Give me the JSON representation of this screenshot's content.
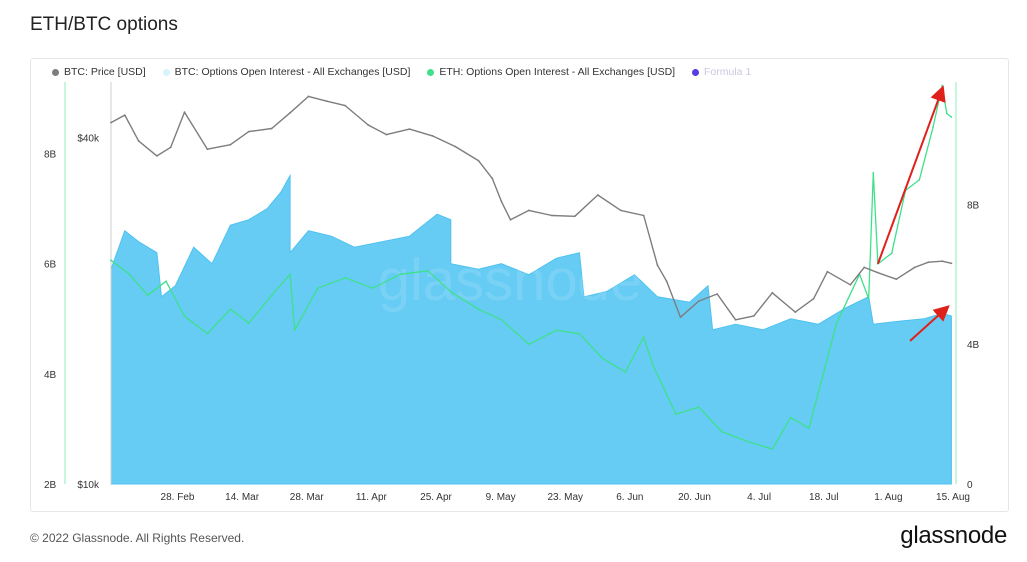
{
  "page": {
    "title": "ETH/BTC options",
    "copyright": "© 2022 Glassnode. All Rights Reserved.",
    "brand": "glassnode",
    "watermark": "glassnode"
  },
  "legend": [
    {
      "label": "BTC: Price [USD]",
      "color": "#7d7d7d"
    },
    {
      "label": "BTC: Options Open Interest - All Exchanges [USD]",
      "color": "#d6f4fb"
    },
    {
      "label": "ETH: Options Open Interest - All Exchanges [USD]",
      "color": "#3fe08c"
    },
    {
      "label": "Formula 1",
      "color": "#5a3be0"
    }
  ],
  "colors": {
    "btc_oi_fill": "#66ccf4",
    "btc_oi_line": "#4fc2ef",
    "eth_oi": "#3fe08c",
    "price": "#7d7d7d",
    "arrows": "#e0201b",
    "cursor_line": "#3fe08c"
  },
  "chart_data": {
    "type": "area",
    "x_tick_labels": [
      "28. Feb",
      "14. Mar",
      "28. Mar",
      "11. Apr",
      "25. Apr",
      "9. May",
      "23. May",
      "6. Jun",
      "20. Jun",
      "4. Jul",
      "18. Jul",
      "1. Aug",
      "15. Aug"
    ],
    "x_range": [
      "2022-02-14",
      "2022-08-17"
    ],
    "left_axis_oi": {
      "ticks": [
        "2B",
        "4B",
        "6B",
        "8B"
      ],
      "range": [
        2,
        9.3
      ],
      "unit": "B USD"
    },
    "left_axis_price": {
      "ticks": [
        "$10k",
        "$40k"
      ],
      "scale": "log",
      "range": [
        10000,
        50000
      ]
    },
    "right_axis_eth_oi": {
      "ticks": [
        "0",
        "4B",
        "8B"
      ],
      "range": [
        0,
        11.5
      ],
      "unit": "B USD"
    },
    "series": [
      {
        "name": "BTC: Options Open Interest - All Exchanges [USD]",
        "type": "area",
        "axis": "left_oi",
        "points": [
          [
            "2022-02-14",
            5.9
          ],
          [
            "2022-02-17",
            6.6
          ],
          [
            "2022-02-20",
            6.4
          ],
          [
            "2022-02-24",
            6.2
          ],
          [
            "2022-02-25",
            5.4
          ],
          [
            "2022-02-28",
            5.6
          ],
          [
            "2022-03-04",
            6.3
          ],
          [
            "2022-03-08",
            6.0
          ],
          [
            "2022-03-12",
            6.7
          ],
          [
            "2022-03-16",
            6.8
          ],
          [
            "2022-03-20",
            7.0
          ],
          [
            "2022-03-23",
            7.3
          ],
          [
            "2022-03-25",
            7.6
          ],
          [
            "2022-03-25",
            6.2
          ],
          [
            "2022-03-29",
            6.6
          ],
          [
            "2022-04-03",
            6.5
          ],
          [
            "2022-04-08",
            6.3
          ],
          [
            "2022-04-14",
            6.4
          ],
          [
            "2022-04-20",
            6.5
          ],
          [
            "2022-04-26",
            6.9
          ],
          [
            "2022-04-29",
            6.8
          ],
          [
            "2022-04-29",
            6.0
          ],
          [
            "2022-05-05",
            5.9
          ],
          [
            "2022-05-10",
            6.0
          ],
          [
            "2022-05-16",
            5.8
          ],
          [
            "2022-05-22",
            6.1
          ],
          [
            "2022-05-27",
            6.2
          ],
          [
            "2022-05-28",
            5.4
          ],
          [
            "2022-06-02",
            5.5
          ],
          [
            "2022-06-08",
            5.8
          ],
          [
            "2022-06-13",
            5.4
          ],
          [
            "2022-06-20",
            5.3
          ],
          [
            "2022-06-24",
            5.6
          ],
          [
            "2022-06-25",
            4.8
          ],
          [
            "2022-06-30",
            4.9
          ],
          [
            "2022-07-06",
            4.8
          ],
          [
            "2022-07-12",
            5.0
          ],
          [
            "2022-07-18",
            4.9
          ],
          [
            "2022-07-24",
            5.2
          ],
          [
            "2022-07-29",
            5.4
          ],
          [
            "2022-07-30",
            4.9
          ],
          [
            "2022-08-04",
            4.95
          ],
          [
            "2022-08-10",
            5.0
          ],
          [
            "2022-08-14",
            5.1
          ],
          [
            "2022-08-16",
            5.05
          ]
        ]
      },
      {
        "name": "ETH: Options Open Interest - All Exchanges [USD]",
        "type": "line",
        "axis": "right_eth_oi",
        "points": [
          [
            "2022-02-14",
            6.4
          ],
          [
            "2022-02-18",
            6.0
          ],
          [
            "2022-02-22",
            5.4
          ],
          [
            "2022-02-26",
            5.8
          ],
          [
            "2022-03-02",
            4.8
          ],
          [
            "2022-03-07",
            4.3
          ],
          [
            "2022-03-12",
            5.0
          ],
          [
            "2022-03-16",
            4.6
          ],
          [
            "2022-03-21",
            5.4
          ],
          [
            "2022-03-25",
            6.0
          ],
          [
            "2022-03-26",
            4.4
          ],
          [
            "2022-03-31",
            5.6
          ],
          [
            "2022-04-06",
            5.9
          ],
          [
            "2022-04-12",
            5.6
          ],
          [
            "2022-04-18",
            6.0
          ],
          [
            "2022-04-24",
            6.1
          ],
          [
            "2022-04-29",
            5.5
          ],
          [
            "2022-05-05",
            5.0
          ],
          [
            "2022-05-10",
            4.7
          ],
          [
            "2022-05-16",
            4.0
          ],
          [
            "2022-05-22",
            4.4
          ],
          [
            "2022-05-27",
            4.3
          ],
          [
            "2022-06-01",
            3.6
          ],
          [
            "2022-06-06",
            3.2
          ],
          [
            "2022-06-10",
            4.2
          ],
          [
            "2022-06-12",
            3.4
          ],
          [
            "2022-06-17",
            2.0
          ],
          [
            "2022-06-22",
            2.2
          ],
          [
            "2022-06-27",
            1.5
          ],
          [
            "2022-07-03",
            1.2
          ],
          [
            "2022-07-08",
            1.0
          ],
          [
            "2022-07-12",
            1.9
          ],
          [
            "2022-07-16",
            1.6
          ],
          [
            "2022-07-22",
            4.6
          ],
          [
            "2022-07-27",
            6.0
          ],
          [
            "2022-07-29",
            5.3
          ],
          [
            "2022-07-30",
            8.9
          ],
          [
            "2022-07-31",
            6.3
          ],
          [
            "2022-08-03",
            6.6
          ],
          [
            "2022-08-06",
            8.4
          ],
          [
            "2022-08-09",
            8.7
          ],
          [
            "2022-08-12",
            10.2
          ],
          [
            "2022-08-14",
            11.4
          ],
          [
            "2022-08-15",
            10.6
          ],
          [
            "2022-08-16",
            10.5
          ]
        ]
      },
      {
        "name": "BTC: Price [USD]",
        "type": "line",
        "axis": "left_price",
        "points": [
          [
            "2022-02-14",
            42500
          ],
          [
            "2022-02-17",
            43800
          ],
          [
            "2022-02-20",
            39500
          ],
          [
            "2022-02-24",
            37200
          ],
          [
            "2022-02-27",
            38500
          ],
          [
            "2022-03-02",
            44300
          ],
          [
            "2022-03-07",
            38200
          ],
          [
            "2022-03-12",
            38900
          ],
          [
            "2022-03-16",
            41000
          ],
          [
            "2022-03-21",
            41500
          ],
          [
            "2022-03-25",
            44200
          ],
          [
            "2022-03-29",
            47200
          ],
          [
            "2022-04-02",
            46300
          ],
          [
            "2022-04-06",
            45500
          ],
          [
            "2022-04-11",
            42100
          ],
          [
            "2022-04-15",
            40500
          ],
          [
            "2022-04-20",
            41400
          ],
          [
            "2022-04-25",
            40300
          ],
          [
            "2022-04-30",
            38600
          ],
          [
            "2022-05-05",
            36500
          ],
          [
            "2022-05-08",
            34000
          ],
          [
            "2022-05-10",
            31000
          ],
          [
            "2022-05-12",
            28800
          ],
          [
            "2022-05-16",
            29900
          ],
          [
            "2022-05-21",
            29300
          ],
          [
            "2022-05-26",
            29200
          ],
          [
            "2022-05-31",
            31800
          ],
          [
            "2022-06-05",
            29900
          ],
          [
            "2022-06-10",
            29300
          ],
          [
            "2022-06-13",
            24000
          ],
          [
            "2022-06-15",
            22500
          ],
          [
            "2022-06-18",
            19500
          ],
          [
            "2022-06-22",
            20800
          ],
          [
            "2022-06-26",
            21400
          ],
          [
            "2022-06-30",
            19300
          ],
          [
            "2022-07-04",
            19600
          ],
          [
            "2022-07-08",
            21500
          ],
          [
            "2022-07-13",
            19900
          ],
          [
            "2022-07-17",
            21000
          ],
          [
            "2022-07-20",
            23400
          ],
          [
            "2022-07-25",
            22200
          ],
          [
            "2022-07-28",
            23800
          ],
          [
            "2022-07-31",
            23300
          ],
          [
            "2022-08-04",
            22700
          ],
          [
            "2022-08-08",
            23800
          ],
          [
            "2022-08-11",
            24300
          ],
          [
            "2022-08-14",
            24400
          ],
          [
            "2022-08-16",
            24200
          ]
        ]
      }
    ],
    "annotations": [
      {
        "type": "arrow",
        "color": "#e0201b",
        "from": [
          "2022-07-31",
          6.3
        ],
        "to": [
          "2022-08-14",
          11.3
        ],
        "axis": "right_eth_oi"
      },
      {
        "type": "arrow",
        "color": "#e0201b",
        "from": [
          "2022-08-07",
          4.6
        ],
        "to": [
          "2022-08-15",
          5.2
        ],
        "axis": "left_oi"
      }
    ],
    "grid": false,
    "legend_position": "top"
  }
}
